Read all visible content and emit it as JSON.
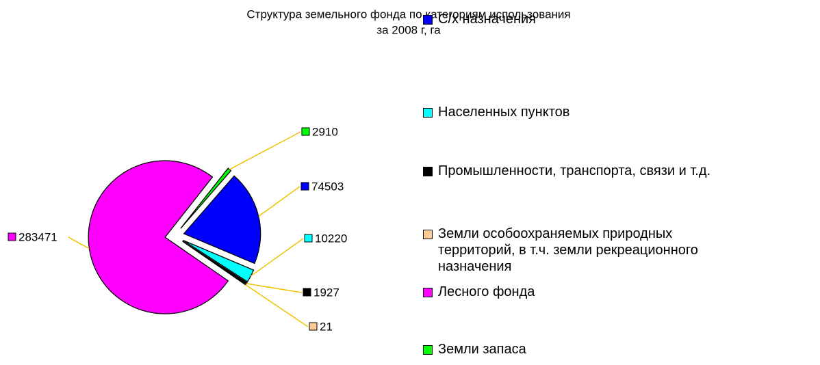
{
  "chart_data": {
    "type": "pie",
    "title": [
      "Структура земельного фонда по категориям использования",
      "за 2008 г, га"
    ],
    "categories": [
      "С/х назначения",
      "Населенных пунктов",
      "Промышленности, транспорта, связи и т.д.",
      "Земли особоохраняемых природных территорий, в т.ч. земли рекреационного назначения",
      "Лесного фонда",
      "Земли запаса"
    ],
    "values": [
      74503,
      10220,
      1927,
      21,
      283471,
      2910
    ],
    "colors": [
      "#0000ff",
      "#00ffff",
      "#000000",
      "#ffcc99",
      "#ff00ff",
      "#00ff00"
    ],
    "legend": "right"
  }
}
